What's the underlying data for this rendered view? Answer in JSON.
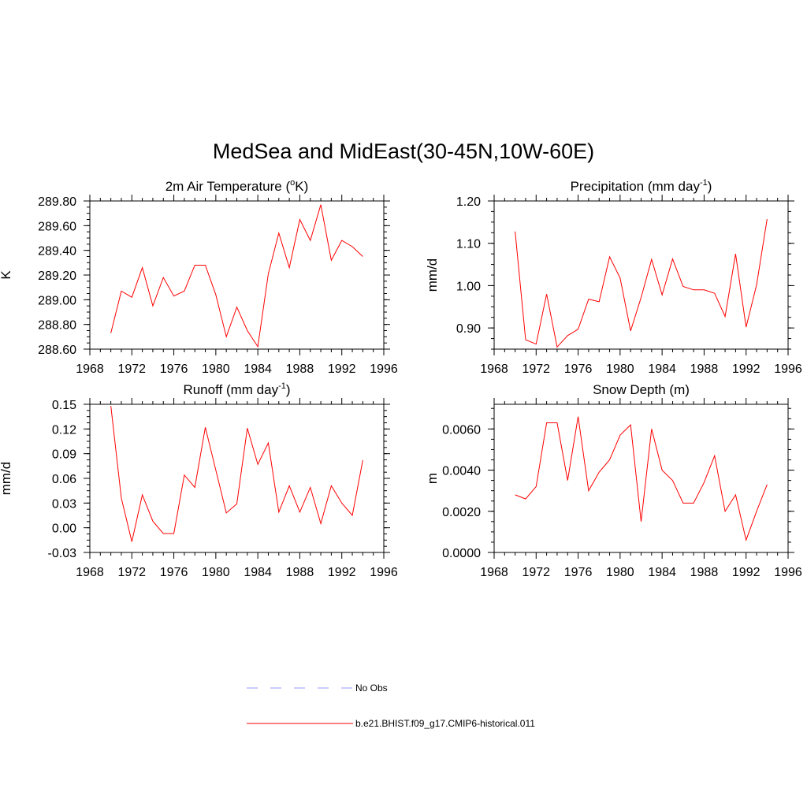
{
  "figure_title": "MedSea and MidEast(30-45N,10W-60E)",
  "legend": [
    {
      "label": "No Obs",
      "color": "#9999ff",
      "dash": "dashed"
    },
    {
      "label": "b.e21.BHIST.f09_g17.CMIP6-historical.011",
      "color": "#ff0000",
      "dash": "solid"
    }
  ],
  "chart_data": [
    {
      "type": "line",
      "title": "2m Air Temperature (",
      "title_sup": "o",
      "title_tail": "K)",
      "ylabel": "K",
      "xlim": [
        1968,
        1996
      ],
      "ylim": [
        288.6,
        289.8
      ],
      "xticks": [
        1968,
        1972,
        1976,
        1980,
        1984,
        1988,
        1992,
        1996
      ],
      "yticks": [
        "288.60",
        "288.80",
        "289.00",
        "289.20",
        "289.40",
        "289.60",
        "289.80"
      ],
      "series": [
        {
          "color": "#ff0000",
          "x": [
            1970,
            1971,
            1972,
            1973,
            1974,
            1975,
            1976,
            1977,
            1978,
            1979,
            1980,
            1981,
            1982,
            1983,
            1984,
            1985,
            1986,
            1987,
            1988,
            1989,
            1990,
            1991,
            1992,
            1993,
            1994
          ],
          "y": [
            288.73,
            289.07,
            289.02,
            289.26,
            288.95,
            289.18,
            289.03,
            289.07,
            289.28,
            289.28,
            289.04,
            288.7,
            288.94,
            288.75,
            288.62,
            289.21,
            289.54,
            289.26,
            289.65,
            289.48,
            289.77,
            289.32,
            289.48,
            289.43,
            289.35
          ]
        }
      ]
    },
    {
      "type": "line",
      "title": "Precipitation (mm day",
      "title_sup": "-1",
      "title_tail": ")",
      "ylabel": "mm/d",
      "xlim": [
        1968,
        1996
      ],
      "ylim": [
        0.85,
        1.2
      ],
      "xticks": [
        1968,
        1972,
        1976,
        1980,
        1984,
        1988,
        1992,
        1996
      ],
      "yticks": [
        "0.90",
        "1.00",
        "1.10",
        "1.20"
      ],
      "series": [
        {
          "color": "#ff0000",
          "x": [
            1970,
            1971,
            1972,
            1973,
            1974,
            1975,
            1976,
            1977,
            1978,
            1979,
            1980,
            1981,
            1982,
            1983,
            1984,
            1985,
            1986,
            1987,
            1988,
            1989,
            1990,
            1991,
            1992,
            1993,
            1994
          ],
          "y": [
            1.128,
            0.872,
            0.862,
            0.98,
            0.855,
            0.882,
            0.897,
            0.968,
            0.962,
            1.068,
            1.018,
            0.893,
            0.972,
            1.062,
            0.978,
            1.063,
            0.998,
            0.99,
            0.99,
            0.982,
            0.927,
            1.075,
            0.902,
            1.002,
            1.157
          ]
        }
      ]
    },
    {
      "type": "line",
      "title": "Runoff (mm day",
      "title_sup": "-1",
      "title_tail": ")",
      "ylabel": "mm/d",
      "xlim": [
        1968,
        1996
      ],
      "ylim": [
        -0.03,
        0.15
      ],
      "xticks": [
        1968,
        1972,
        1976,
        1980,
        1984,
        1988,
        1992,
        1996
      ],
      "yticks": [
        "-0.03",
        "0.00",
        "0.03",
        "0.06",
        "0.09",
        "0.12",
        "0.15"
      ],
      "series": [
        {
          "color": "#ff0000",
          "x": [
            1970,
            1971,
            1972,
            1973,
            1974,
            1975,
            1976,
            1977,
            1978,
            1979,
            1980,
            1981,
            1982,
            1983,
            1984,
            1985,
            1986,
            1987,
            1988,
            1989,
            1990,
            1991,
            1992,
            1993,
            1994
          ],
          "y": [
            0.148,
            0.036,
            -0.017,
            0.04,
            0.008,
            -0.007,
            -0.007,
            0.064,
            0.049,
            0.122,
            0.07,
            0.018,
            0.029,
            0.121,
            0.077,
            0.103,
            0.019,
            0.051,
            0.019,
            0.049,
            0.005,
            0.051,
            0.03,
            0.015,
            0.082
          ]
        }
      ]
    },
    {
      "type": "line",
      "title": "Snow Depth (m)",
      "title_sup": "",
      "title_tail": "",
      "ylabel": "m",
      "xlim": [
        1968,
        1996
      ],
      "ylim": [
        0.0,
        0.0072
      ],
      "xticks": [
        1968,
        1972,
        1976,
        1980,
        1984,
        1988,
        1992,
        1996
      ],
      "yticks": [
        "0.0000",
        "0.0020",
        "0.0040",
        "0.0060"
      ],
      "series": [
        {
          "color": "#ff0000",
          "x": [
            1970,
            1971,
            1972,
            1973,
            1974,
            1975,
            1976,
            1977,
            1978,
            1979,
            1980,
            1981,
            1982,
            1983,
            1984,
            1985,
            1986,
            1987,
            1988,
            1989,
            1990,
            1991,
            1992,
            1993,
            1994
          ],
          "y": [
            0.0028,
            0.0026,
            0.0032,
            0.0063,
            0.0063,
            0.0035,
            0.0066,
            0.003,
            0.0039,
            0.0045,
            0.0057,
            0.0062,
            0.0015,
            0.006,
            0.004,
            0.0035,
            0.0024,
            0.0024,
            0.0034,
            0.0047,
            0.002,
            0.0028,
            0.0006,
            0.002,
            0.0033
          ]
        }
      ]
    }
  ]
}
